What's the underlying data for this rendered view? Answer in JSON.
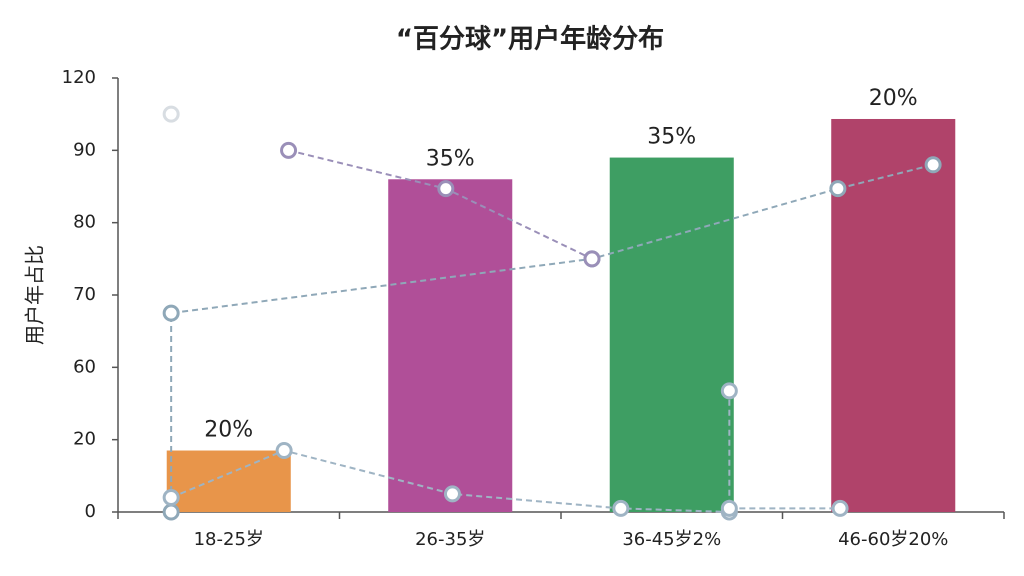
{
  "chart_data": {
    "type": "bar",
    "title": "“百分球”用户年龄分布",
    "y_label": "用户年占比",
    "categories": [
      "18-25岁",
      "26-35岁",
      "36-45岁2%",
      "46-60岁20%"
    ],
    "values": [
      17,
      86,
      89,
      103
    ],
    "colors": [
      "#e8954a",
      "#b04f98",
      "#3e9e63",
      "#b0436a"
    ],
    "annotations": [
      "20%",
      "35%",
      "35%",
      "20%"
    ],
    "ylim": [
      0,
      120
    ],
    "yticks": [
      0,
      20,
      60,
      70,
      80,
      90,
      120
    ],
    "lines": [
      {
        "color": "#8fa8b8",
        "x": [
          -0.26,
          -0.26,
          1.64,
          2.75,
          3.18
        ],
        "values": [
          0,
          67.5,
          75,
          84.7,
          88
        ]
      },
      {
        "color": "#9a8fb8",
        "x": [
          0.27,
          0.98,
          1.64
        ],
        "values": [
          90,
          84.7,
          75
        ]
      },
      {
        "color": "#9fb4c4",
        "x": [
          -0.26,
          0.25,
          1.01,
          1.77,
          2.26,
          2.26,
          2.26,
          2.26,
          2.76
        ],
        "values": [
          4,
          17,
          5,
          1,
          0,
          47,
          null,
          1,
          1
        ]
      },
      {
        "color": "#d8dde2",
        "x": [
          -0.26
        ],
        "values": [
          105
        ]
      }
    ]
  }
}
